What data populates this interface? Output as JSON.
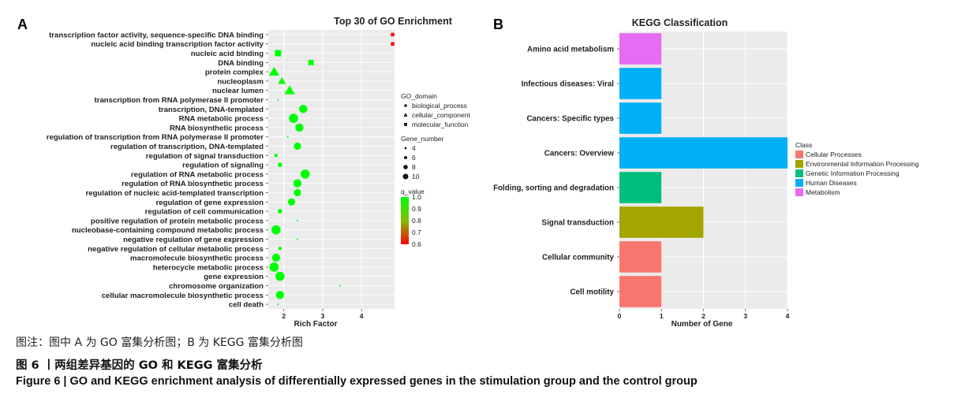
{
  "panel_a_letter": "A",
  "panel_b_letter": "B",
  "captions": {
    "note": "图注：图中 A 为 GO 富集分析图；B 为 KEGG 富集分析图",
    "cn": "图 6 丨两组差异基因的 GO 和 KEGG 富集分析",
    "en": "Figure 6  |  GO and KEGG enrichment analysis of differentially expressed genes in the stimulation group and the control group"
  },
  "colors": {
    "panel_bg": "#ebebeb",
    "grid": "#ffffff",
    "q_high": "#00ff00",
    "q_low": "#ff0000"
  },
  "chart_data": [
    {
      "type": "scatter",
      "title": "Top 30 of GO Enrichment",
      "xlabel": "Rich Factor",
      "ylabel": "",
      "xlim": [
        1.6,
        4.85
      ],
      "xticks": [
        2,
        3,
        4
      ],
      "grid": true,
      "legend_position": "right",
      "terms": [
        "transcription factor activity, sequence-specific DNA binding",
        "nucleic acid binding transcription factor activity",
        "nucleic acid binding",
        "DNA binding",
        "protein complex",
        "nucleoplasm",
        "nuclear lumen",
        "transcription from RNA polymerase II promoter",
        "transcription, DNA-templated",
        "RNA metabolic process",
        "RNA biosynthetic process",
        "regulation of transcription from RNA polymerase II promoter",
        "regulation of transcription, DNA-templated",
        "regulation of signal transduction",
        "regulation of signaling",
        "regulation of RNA metabolic process",
        "regulation of RNA biosynthetic process",
        "regulation of nucleic acid-templated transcription",
        "regulation of gene expression",
        "regulation of cell communication",
        "positive regulation of protein metabolic process",
        "nucleobase-containing compound metabolic process",
        "negative regulation of gene expression",
        "negative regulation of cellular metabolic process",
        "macromolecule biosynthetic process",
        "heterocycle metabolic process",
        "gene expression",
        "chromosome organization",
        "cellular macromolecule biosynthetic process",
        "cell death"
      ],
      "rich_factor": [
        4.8,
        4.8,
        1.85,
        2.7,
        1.75,
        1.95,
        2.15,
        1.85,
        2.5,
        2.25,
        2.4,
        2.1,
        2.35,
        1.8,
        1.9,
        2.55,
        2.35,
        2.35,
        2.2,
        1.9,
        2.35,
        1.8,
        2.35,
        1.9,
        1.8,
        1.75,
        1.9,
        3.45,
        1.9,
        1.85
      ],
      "gene_number": [
        4,
        4,
        7,
        6,
        9,
        7,
        9,
        2,
        9,
        10,
        9,
        2,
        8,
        4,
        5,
        10,
        9,
        8,
        8,
        5,
        2,
        10,
        2,
        4,
        9,
        10,
        10,
        2,
        9,
        2
      ],
      "q_value": [
        0.6,
        0.6,
        1.0,
        1.0,
        1.0,
        1.0,
        1.0,
        1.0,
        1.0,
        1.0,
        1.0,
        1.0,
        1.0,
        1.0,
        1.0,
        1.0,
        1.0,
        1.0,
        1.0,
        1.0,
        1.0,
        1.0,
        1.0,
        1.0,
        1.0,
        1.0,
        1.0,
        1.0,
        1.0,
        1.0
      ],
      "go_domain": [
        "molecular_function",
        "molecular_function",
        "molecular_function",
        "molecular_function",
        "cellular_component",
        "cellular_component",
        "cellular_component",
        "biological_process",
        "biological_process",
        "biological_process",
        "biological_process",
        "biological_process",
        "biological_process",
        "biological_process",
        "biological_process",
        "biological_process",
        "biological_process",
        "biological_process",
        "biological_process",
        "biological_process",
        "biological_process",
        "biological_process",
        "biological_process",
        "biological_process",
        "biological_process",
        "biological_process",
        "biological_process",
        "biological_process",
        "biological_process",
        "biological_process"
      ],
      "legend_go_domain": {
        "title": "GO_domain",
        "items": [
          "biological_process",
          "cellular_component",
          "molecular_function"
        ]
      },
      "legend_gene_number": {
        "title": "Gene_number",
        "values": [
          4,
          6,
          8,
          10
        ]
      },
      "legend_q_value": {
        "title": "q_value",
        "ticks": [
          1.0,
          0.9,
          0.8,
          0.7,
          0.6
        ],
        "tick_labels": [
          "1.0",
          "0.9",
          "0.8",
          "0.7",
          "0.6"
        ]
      }
    },
    {
      "type": "bar",
      "orientation": "horizontal",
      "title": "KEGG Classification",
      "xlabel": "Number of Gene",
      "ylabel": "",
      "xlim": [
        0,
        4
      ],
      "xticks": [
        0,
        1,
        2,
        3,
        4
      ],
      "grid": true,
      "legend_position": "right",
      "categories": [
        "Amino acid metabolism",
        "Infectious diseases: Viral",
        "Cancers: Specific types",
        "Cancers: Overview",
        "Folding, sorting and degradation",
        "Signal transduction",
        "Cellular community",
        "Cell motility"
      ],
      "values": [
        1,
        1,
        1,
        4,
        1,
        2,
        1,
        1
      ],
      "class": [
        "Metabolism",
        "Human Diseases",
        "Human Diseases",
        "Human Diseases",
        "Genetic Information Processing",
        "Environmental Information Processing",
        "Cellular Processes",
        "Cellular Processes"
      ],
      "legend": {
        "title": "Class",
        "items": [
          {
            "name": "Cellular Processes",
            "color": "#f8766d"
          },
          {
            "name": "Environmental Information Processing",
            "color": "#a3a500"
          },
          {
            "name": "Genetic Information Processing",
            "color": "#00bf7d"
          },
          {
            "name": "Human Diseases",
            "color": "#00b0f6"
          },
          {
            "name": "Metabolism",
            "color": "#e76bf3"
          }
        ]
      }
    }
  ]
}
